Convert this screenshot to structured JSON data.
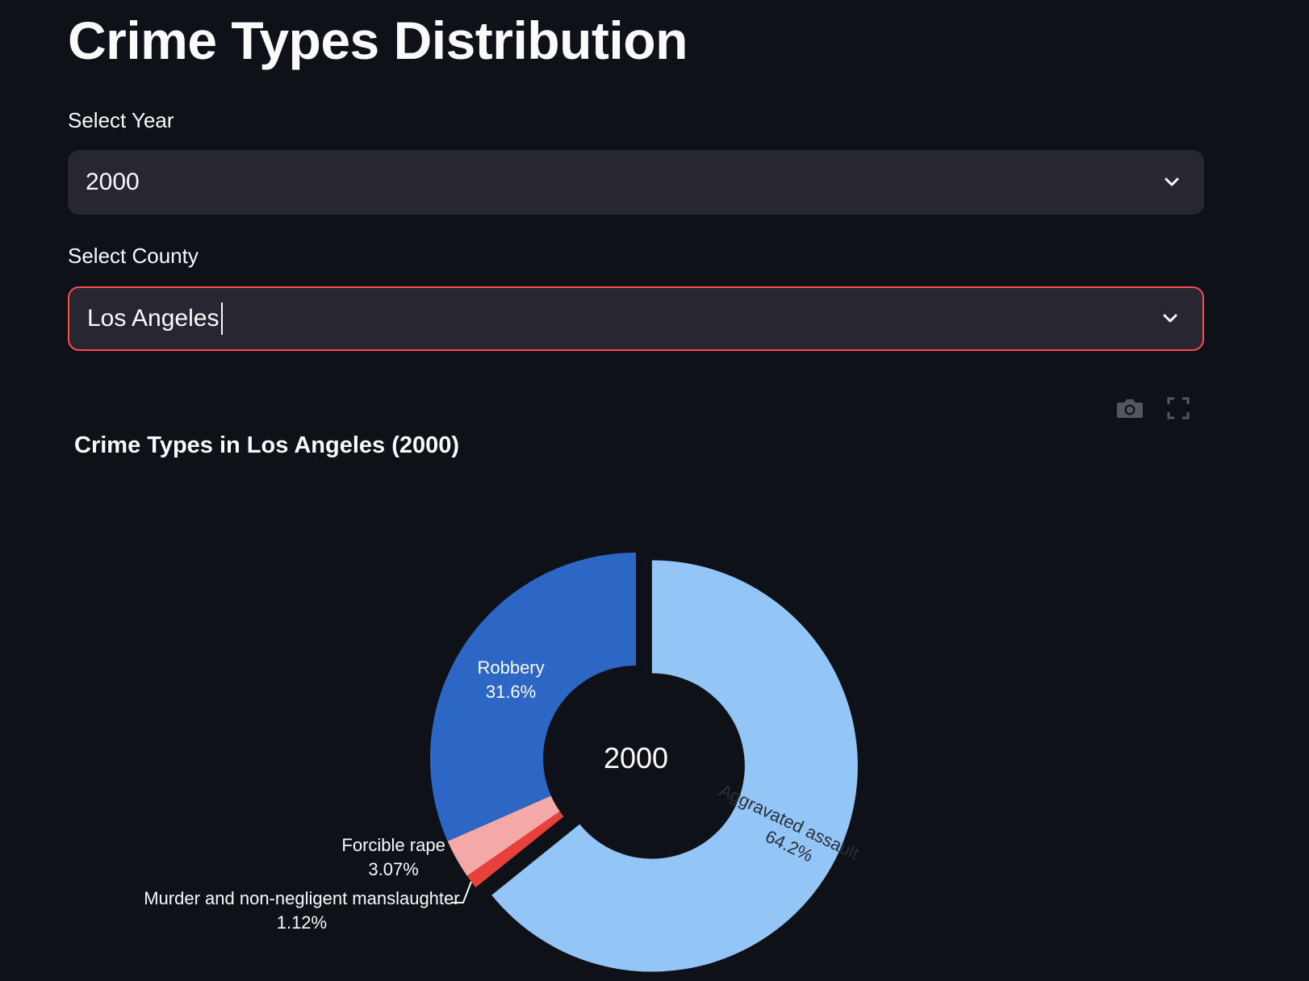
{
  "page": {
    "title": "Crime Types Distribution"
  },
  "year_select": {
    "label": "Select Year",
    "value": "2000"
  },
  "county_select": {
    "label": "Select County",
    "value": "Los Angeles"
  },
  "toolbar": {
    "camera_icon": "camera-icon",
    "fullscreen_icon": "fullscreen-icon"
  },
  "chart_data": {
    "type": "pie",
    "variant": "donut",
    "title": "Crime Types in Los Angeles (2000)",
    "center_label": "2000",
    "slices": [
      {
        "label": "Aggravated assault",
        "percent_text": "64.2%",
        "value": 64.2,
        "color": "#93c5f7",
        "text_color": "#2a2f3a"
      },
      {
        "label": "Murder and non-negligent manslaughter",
        "percent_text": "1.12%",
        "value": 1.12,
        "color": "#e8403a",
        "text_color": "#fafafa"
      },
      {
        "label": "Forcible rape",
        "percent_text": "3.07%",
        "value": 3.07,
        "color": "#f4a9a8",
        "text_color": "#fafafa"
      },
      {
        "label": "Robbery",
        "percent_text": "31.6%",
        "value": 31.6,
        "color": "#2c67c6",
        "text_color": "#fafafa"
      }
    ],
    "pulled_slice": "Aggravated assault"
  }
}
